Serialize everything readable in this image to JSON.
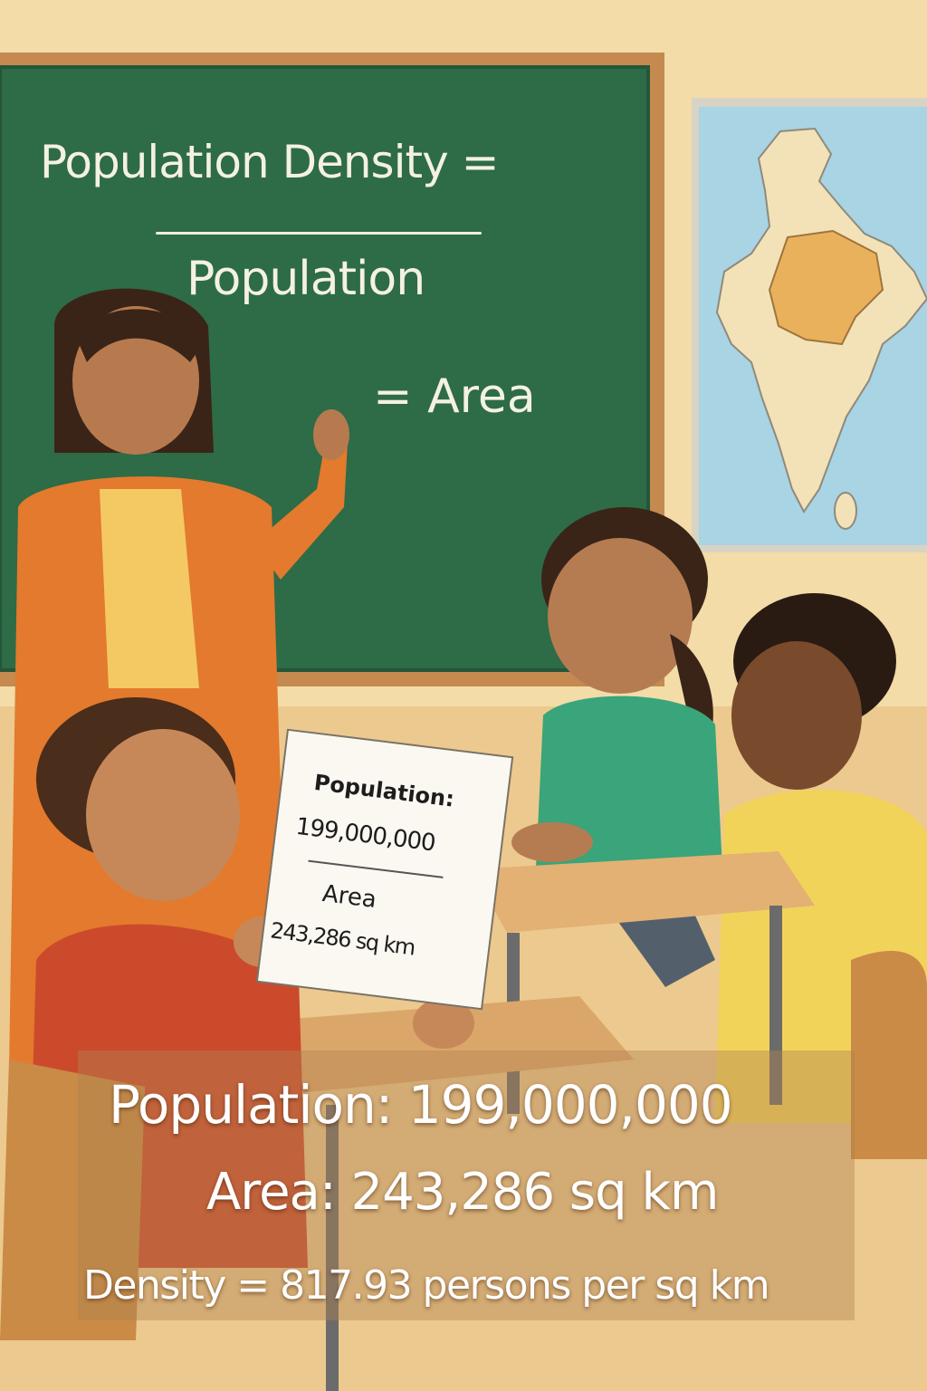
{
  "chalkboard": {
    "title": "Population Density =",
    "numerator": "Population",
    "denominator": "= Area"
  },
  "paper": {
    "line1": "Population:",
    "line2": "199,000,000",
    "line3": "Area",
    "line4": "243,286 sq km"
  },
  "caption": {
    "population": "Population:  199,000,000",
    "area": "Area:  243,286 sq km",
    "density": "Density = 817.93 persons per sq  km"
  },
  "colors": {
    "wall": "#f3dca8",
    "chalkboard": "#2e6b47",
    "board_frame": "#c48a4f",
    "map_water": "#a8d4e3",
    "map_land": "#f3e2b8",
    "map_highlight": "#e9b15c",
    "teacher_cardigan": "#e37a2d",
    "girl_shirt": "#3aa47a",
    "boy_shirt": "#cc4a2c",
    "boy2_shirt": "#f2d35a"
  },
  "icons": [
    "india-map",
    "calculator",
    "paper-sheet"
  ]
}
